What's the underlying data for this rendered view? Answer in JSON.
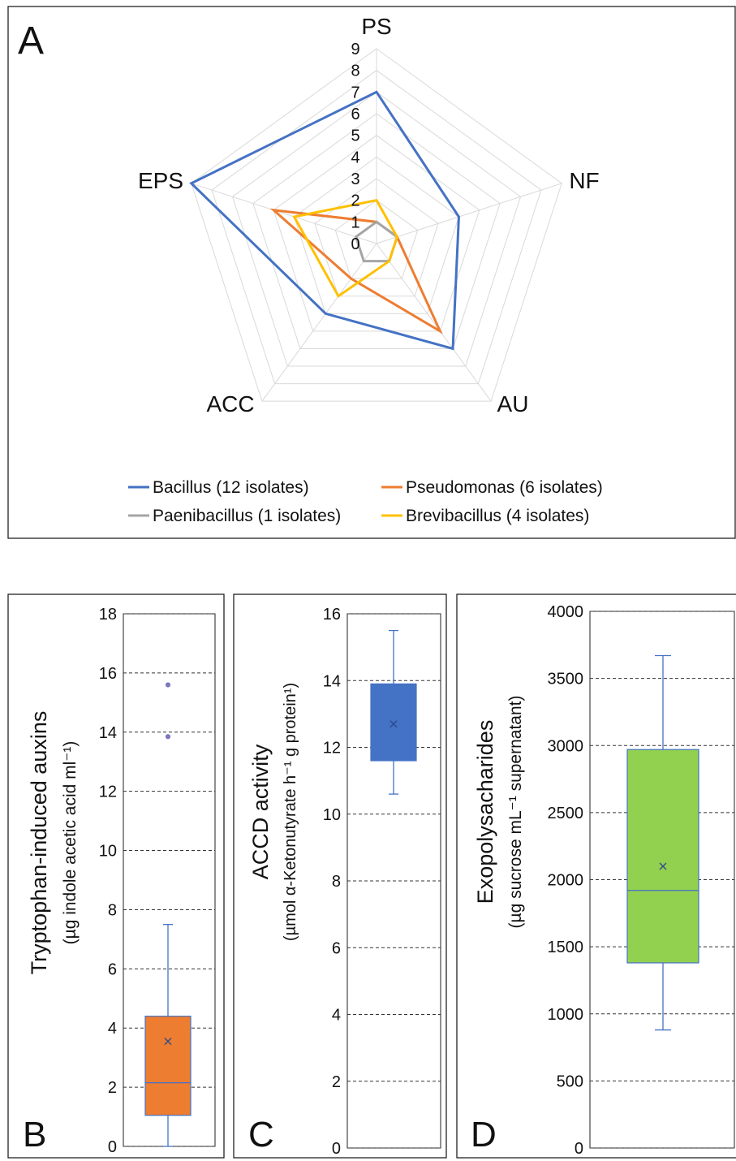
{
  "chart_data": [
    {
      "panel": "A",
      "type": "radar",
      "axes": [
        "PS",
        "NF",
        "AU",
        "ACC",
        "EPS"
      ],
      "rlim": [
        0,
        9
      ],
      "ticks": [
        "0",
        "1",
        "2",
        "3",
        "4",
        "5",
        "6",
        "7",
        "8",
        "9"
      ],
      "legend_position": "bottom",
      "series": [
        {
          "name": "Bacillus  (12 isolates)",
          "color": "#4472C4",
          "values": [
            7,
            4,
            6,
            4,
            9
          ]
        },
        {
          "name": "Pseudomonas (6 isolates)",
          "color": "#ED7D31",
          "values": [
            1,
            1,
            5,
            2,
            5
          ]
        },
        {
          "name": "Paenibacillus (1 isolates)",
          "color": "#A5A5A5",
          "values": [
            1,
            1,
            1,
            1,
            1
          ]
        },
        {
          "name": "Brevibacillus (4 isolates)",
          "color": "#FFC000",
          "values": [
            2,
            1,
            1,
            3,
            4
          ]
        }
      ]
    },
    {
      "panel": "B",
      "type": "box",
      "ylabel_line1": "Tryptophan-induced auxins",
      "ylabel_line2": "(µg  indole acetic acid ml⁻¹)",
      "ylim": [
        0,
        18
      ],
      "yticks": [
        "0",
        "2",
        "4",
        "6",
        "8",
        "10",
        "12",
        "14",
        "16",
        "18"
      ],
      "color": "#ED7D31",
      "box": {
        "min": 0,
        "q1": 1.05,
        "median": 2.15,
        "q3": 4.4,
        "max": 7.5,
        "mean": 3.55
      },
      "outliers": [
        13.85,
        15.6
      ]
    },
    {
      "panel": "C",
      "type": "box",
      "ylabel_line1": "ACCD activity",
      "ylabel_line2": "(µmol α-Ketonutyrate h⁻¹ g protein¹)",
      "ylim": [
        0,
        16
      ],
      "yticks": [
        "0",
        "2",
        "4",
        "6",
        "8",
        "10",
        "12",
        "14",
        "16"
      ],
      "color": "#4472C4",
      "box": {
        "min": 10.6,
        "q1": 11.6,
        "median": 12.5,
        "q3": 13.9,
        "max": 15.5,
        "mean": 12.7
      },
      "outliers": []
    },
    {
      "panel": "D",
      "type": "box",
      "ylabel_line1": "Exopolysacharides",
      "ylabel_line2": "(µg sucrose mL⁻¹ supernatant)",
      "ylim": [
        0,
        4000
      ],
      "yticks": [
        "0",
        "500",
        "1000",
        "1500",
        "2000",
        "2500",
        "3000",
        "3500",
        "4000"
      ],
      "color": "#92D050",
      "box": {
        "min": 880,
        "q1": 1380,
        "median": 1920,
        "q3": 2970,
        "max": 3670,
        "mean": 2100
      },
      "outliers": []
    }
  ]
}
